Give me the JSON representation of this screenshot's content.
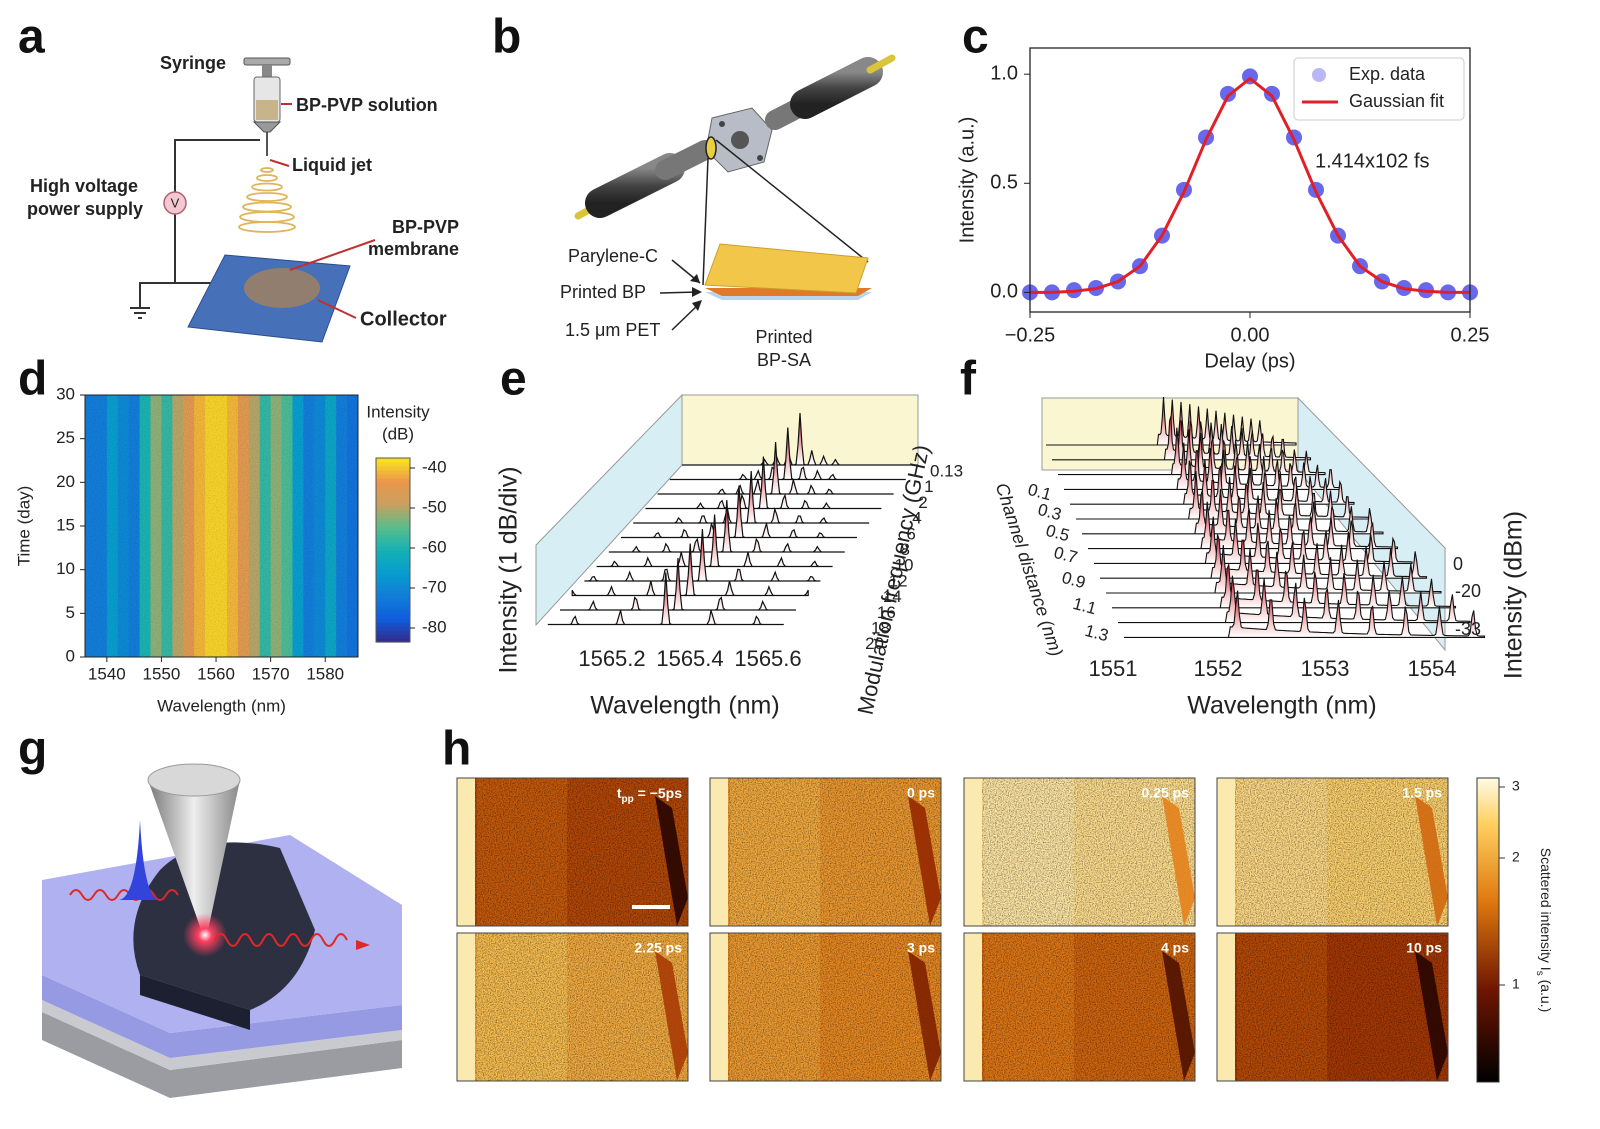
{
  "panels": {
    "a": {
      "label": "a",
      "syringe": "Syringe",
      "solution": "BP-PVP solution",
      "jet": "Liquid jet",
      "supply": [
        "High voltage",
        "power supply"
      ],
      "voltage": "V",
      "membrane": [
        "BP-PVP",
        "membrane"
      ],
      "collector": "Collector"
    },
    "b": {
      "label": "b",
      "layers": [
        "Parylene-C",
        "Printed BP",
        "1.5 μm PET"
      ],
      "device": [
        "Printed",
        "BP-SA"
      ]
    },
    "e": {
      "label": "e",
      "xticks": [
        "1565.2",
        "1565.4",
        "1565.6"
      ],
      "xlabel": "Wavelength (nm)",
      "ylabel": "Intensity (1 dB/div)",
      "zticks": [
        "0.13",
        "1",
        "2",
        "4",
        "6",
        "8",
        "10",
        "12",
        "14",
        "16",
        "18",
        "20"
      ],
      "zlabel": "Modulation frequency (GHz)"
    },
    "f": {
      "label": "f",
      "xticks": [
        "1551",
        "1552",
        "1553",
        "1554"
      ],
      "xlabel": "Wavelength (nm)",
      "zticks": [
        "0.1",
        "0.3",
        "0.5",
        "0.7",
        "0.9",
        "1.1",
        "1.3"
      ],
      "zlabel": "Channel distance (nm)",
      "yticks": [
        "0",
        "-20",
        "-33"
      ],
      "ylabel": "Intensity (dBm)"
    },
    "g": {
      "label": "g"
    },
    "h": {
      "label": "h",
      "frames": [
        {
          "text": "t",
          "sub": "pp",
          "rest": " = −5ps"
        },
        "0 ps",
        "0.25 ps",
        "1.5 ps",
        "2.25 ps",
        "3 ps",
        "4 ps",
        "10 ps"
      ],
      "colorbar_ticks": [
        "3",
        "2",
        "1"
      ],
      "colorbar_label": {
        "text": "Scattered intensity I",
        "sub": "s",
        "rest": " (a.u.)"
      }
    }
  },
  "chart_data": [
    {
      "type": "line",
      "panel": "c",
      "x": [
        -0.25,
        -0.225,
        -0.2,
        -0.175,
        -0.15,
        -0.125,
        -0.1,
        -0.075,
        -0.05,
        -0.025,
        0,
        0.025,
        0.05,
        0.075,
        0.1,
        0.125,
        0.15,
        0.175,
        0.2,
        0.225,
        0.25
      ],
      "series": [
        {
          "name": "Exp. data",
          "color": "#3535e6",
          "marker": "circle",
          "values": [
            0.0,
            0.0,
            0.01,
            0.02,
            0.05,
            0.12,
            0.26,
            0.47,
            0.71,
            0.91,
            0.99,
            0.91,
            0.71,
            0.47,
            0.26,
            0.12,
            0.05,
            0.02,
            0.01,
            0.0,
            0.0
          ]
        },
        {
          "name": "Gaussian fit",
          "color": "#e01f26",
          "values": [
            0.0,
            0.0,
            0.005,
            0.017,
            0.05,
            0.12,
            0.26,
            0.46,
            0.7,
            0.9,
            0.98,
            0.9,
            0.7,
            0.46,
            0.26,
            0.12,
            0.05,
            0.017,
            0.005,
            0.0,
            0.0
          ]
        }
      ],
      "xlabel": "Delay (ps)",
      "ylabel": "Intensity (a.u.)",
      "annotation": "1.414x102 fs",
      "xlim": [
        -0.25,
        0.25
      ],
      "ylim": [
        -0.09,
        1.12
      ],
      "xticks": [
        {
          "value": -0.25,
          "label": "−0.25"
        },
        {
          "value": 0,
          "label": "0.00"
        },
        {
          "value": 0.25,
          "label": "0.25"
        }
      ],
      "yticks": [
        {
          "value": 0,
          "label": "0.0"
        },
        0.5,
        {
          "value": 1,
          "label": "1.0"
        }
      ],
      "legend": "upper right"
    },
    {
      "type": "heatmap",
      "panel": "d",
      "x": [
        1537,
        1539,
        1541,
        1543,
        1545,
        1547,
        1549,
        1551,
        1553,
        1555,
        1557,
        1559,
        1561,
        1563,
        1565,
        1567,
        1569,
        1571,
        1573,
        1575,
        1577,
        1579,
        1581,
        1583,
        1585
      ],
      "values": [
        -72,
        -72,
        -66,
        -70,
        -72,
        -60,
        -52,
        -58,
        -50,
        -45,
        -41,
        -39,
        -39,
        -41,
        -45,
        -50,
        -58,
        -52,
        -56,
        -66,
        -72,
        -70,
        -64,
        -72,
        -74
      ],
      "xlabel": "Wavelength (nm)",
      "ylabel": "Time (day)",
      "xlim": [
        1536,
        1586
      ],
      "ylim": [
        0,
        30
      ],
      "xticks": [
        1540,
        1550,
        1560,
        1570,
        1580
      ],
      "yticks": [
        0,
        5,
        10,
        15,
        20,
        25,
        30
      ],
      "colorbar": {
        "label": [
          "Intensity",
          "(dB)"
        ],
        "zlim": [
          -83.5,
          -37.5
        ],
        "ticks": [
          -40,
          -50,
          -60,
          -70,
          -80
        ]
      },
      "colormap": "parula"
    }
  ]
}
